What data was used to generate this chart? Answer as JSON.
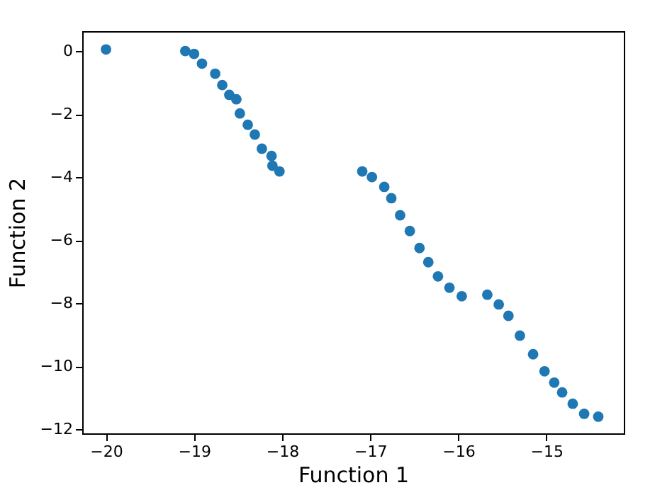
{
  "chart_data": {
    "type": "scatter",
    "xlabel": "Function 1",
    "ylabel": "Function 2",
    "x": [
      -20.0,
      -19.1,
      -19.0,
      -18.91,
      -18.76,
      -18.68,
      -18.6,
      -18.52,
      -18.48,
      -18.39,
      -18.31,
      -18.23,
      -18.12,
      -18.11,
      -18.03,
      -17.09,
      -16.98,
      -16.84,
      -16.76,
      -16.66,
      -16.55,
      -16.44,
      -16.34,
      -16.23,
      -16.1,
      -15.96,
      -15.67,
      -15.54,
      -15.43,
      -15.3,
      -15.15,
      -15.02,
      -14.91,
      -14.82,
      -14.7,
      -14.57,
      -14.41
    ],
    "series": [
      {
        "color": "#1f77b4",
        "values": [
          0.05,
          0.0,
          -0.09,
          -0.4,
          -0.72,
          -1.08,
          -1.39,
          -1.53,
          -1.98,
          -2.34,
          -2.65,
          -3.1,
          -3.33,
          -3.64,
          -3.82,
          -3.82,
          -4.0,
          -4.31,
          -4.67,
          -5.21,
          -5.71,
          -6.25,
          -6.7,
          -7.15,
          -7.51,
          -7.78,
          -7.73,
          -8.04,
          -8.4,
          -9.03,
          -9.62,
          -10.16,
          -10.52,
          -10.83,
          -11.19,
          -11.51,
          -11.6
        ]
      }
    ],
    "xlim": [
      -20.27,
      -14.12
    ],
    "ylim": [
      -12.13,
      0.63
    ],
    "xticks": [
      -20,
      -19,
      -18,
      -17,
      -16,
      -15
    ],
    "yticks": [
      -12,
      -10,
      -8,
      -6,
      -4,
      -2,
      0
    ],
    "marker": "circle",
    "grid": false
  }
}
